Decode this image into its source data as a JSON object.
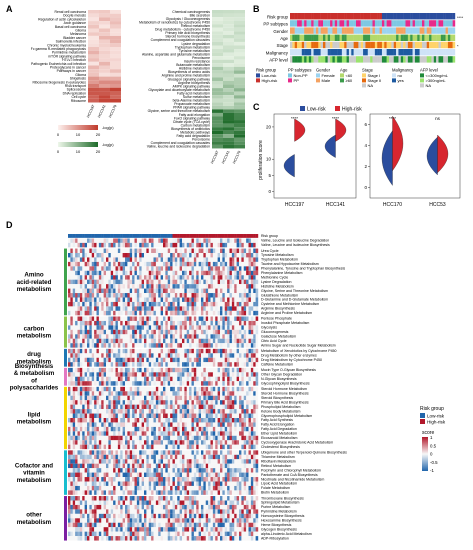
{
  "panel_labels": {
    "A": "A",
    "B": "B",
    "C": "C",
    "D": "D"
  },
  "panelA": {
    "left_rows": [
      "Renal cell carcinoma",
      "Oocyte meiosis",
      "Regulation of actin cytoskeleton",
      "Axon guidance",
      "Basal cell carcinoma",
      "Glioma",
      "Melanoma",
      "Bladder cancer",
      "Salmonella infection",
      "Chronic myeloid leukemia",
      "Fc gamma R-mediated phagocytosis",
      "Pyrimidine metabolism",
      "mTOR signaling pathway",
      "HTLV-I infection",
      "Pathogenic Escherichia coli infection",
      "Proteoglycans in cancer",
      "Pathways in cancer",
      "Glioma",
      "Shigellosis",
      "Ribosome biogenesis in eukaryotes",
      "RNA transport",
      "Spliceosome",
      "DNA replication",
      "Cell cycle",
      "Ribosome"
    ],
    "right_rows": [
      "Chemical carcinogenesis",
      "Bile secretion",
      "Glycolysis / Gluconeogenesis",
      "Metabolism of xenobiotics by cytochrome P450",
      "Retinol metabolism",
      "Drug metabolism - cytochrome P450",
      "Primary bile acid biosynthesis",
      "Steroid hormone biosynthesis",
      "Complement and coagulation cascades",
      "Lysine degradation",
      "Tryptophan metabolism",
      "Tyrosine metabolism",
      "Alanine, aspartate and glutamate metabolism",
      "Peroxisome",
      "Insulin resistance",
      "Butanoate metabolism",
      "Histidine metabolism",
      "Biosynthesis of amino acids",
      "Arginine and proline metabolism",
      "Glucagon signaling pathway",
      "Arginine biosynthesis",
      "AMPK signaling pathway",
      "Glyoxylate and dicarboxylate metabolism",
      "Fatty acid metabolism",
      "Sulfur metabolism",
      "beta-Alanine metabolism",
      "Propanoate metabolism",
      "PPAR signaling pathway",
      "Glycine, serine and threonine metabolism",
      "Fatty acid elongation",
      "FoxO signaling pathway",
      "Citrate cycle (TCA cycle)",
      "Carbon metabolism",
      "Biosynthesis of antibiotics",
      "Metabolic pathways",
      "Fatty acid degradation",
      "Peroxisome",
      "Complement and coagulation cascades",
      "Valine, leucine and isoleucine degradation"
    ],
    "columns": [
      "HCC197",
      "HCC141",
      "HCC170"
    ],
    "legend_red": {
      "title": "-log(p)",
      "ticks": [
        "0",
        "10",
        "20"
      ]
    },
    "legend_green": {
      "title": "-log(p)",
      "ticks": [
        "0",
        "10",
        "20"
      ]
    },
    "colors": {
      "red": "#c0392b",
      "green": "#1e6b2a"
    }
  },
  "panelB": {
    "tracks": [
      "Risk group",
      "PP subtypes",
      "Gender",
      "Age",
      "Stage",
      "Malignancy",
      "AFP level"
    ],
    "sig_marks": [
      "****",
      "",
      "",
      "",
      "*",
      "",
      ""
    ],
    "legend": {
      "risk_group": {
        "title": "Risk group",
        "items": [
          "Low-risk",
          "High-risk"
        ]
      },
      "pp_subtypes": {
        "title": "PP subtypes",
        "items": [
          "Non-PP",
          "PP"
        ]
      },
      "gender": {
        "title": "Gender",
        "items": [
          "Female",
          "Male"
        ]
      },
      "age": {
        "title": "Age",
        "items": [
          "<60",
          "≥60"
        ]
      },
      "stage": {
        "title": "Stage",
        "items": [
          "Stage I",
          "Stage II",
          "NA"
        ]
      },
      "malignancy": {
        "title": "Malignancy",
        "items": [
          "no",
          "yes"
        ]
      },
      "afp": {
        "title": "AFP level",
        "items": [
          "<=300ng/mL",
          ">300ng/mL",
          "NA"
        ]
      }
    }
  },
  "panelC": {
    "legend": [
      "Low-risk",
      "High-risk"
    ],
    "ylabel": "proliferation score",
    "left": {
      "groups": [
        "HCC197",
        "HCC141"
      ],
      "sig": [
        "****",
        "****"
      ],
      "yticks": [
        "0",
        "5",
        "10",
        "20"
      ]
    },
    "right": {
      "groups": [
        "HCC170",
        "HCC53"
      ],
      "sig": [
        "****",
        "ns"
      ],
      "yticks": [
        "0",
        "2",
        "4",
        "6"
      ]
    },
    "colors": {
      "low": "#2b4d9e",
      "high": "#d7262f"
    }
  },
  "panelD": {
    "top_rows": [
      "Risk group",
      "Valine, Leucine and Isoleucine Degradation",
      "Valine, Leucine and Isoleucine Biosynthesis"
    ],
    "groups": [
      {
        "title": "Amino acid-related metabolism",
        "color": "#3fa34d",
        "rows": [
          "Urea Cycle",
          "Tyrosine Metabolism",
          "Tryptophan Metabolism",
          "Taurine and Hypotaurine Metabolism",
          "Phenylalanine, Tyrosine and Tryptophan Biosynthesis",
          "Phenylalanine Metabolism",
          "Methionine Cycle",
          "Lysine Degradation",
          "Histidine Metabolism",
          "Glycine, Serine and Threonine Metabolism",
          "Glutathione Metabolism",
          "D-Glutamine and D-Glutamate Metabolism",
          "Cysteine and Methionine Metabolism",
          "Arginine Biosynthesis",
          "Arginine and Proline Metabolism"
        ]
      },
      {
        "title": "carbon metabolism",
        "color": "#8bc34a",
        "rows": [
          "Pentose Phosphate",
          "Inositol Phosphate Metabolism",
          "Glycolysis",
          "Gluconeogenesis",
          "Galactose Metabolism",
          "Citric Acid Cycle",
          "Amino Sugar and Nucleotide Sugar Metabolism"
        ]
      },
      {
        "title": "drug metabolism",
        "color": "#1f77b4",
        "rows": [
          "Metabolism of Xenobiotics by Cytochrome P450",
          "Drug Metabolism by other enzymes",
          "Drug Metabolism by Cytochrome P450",
          "Caffeine Metabolism"
        ]
      },
      {
        "title": "Biosynthesis & metabolism of polysaccharides",
        "color": "#e377c2",
        "rows": [
          "Mucin Type O-Glycan Biosynthesis",
          "Other Glycan Degradation",
          "N-Glycan Biosynthesis",
          "Glycosphingolipid Biosynthesis"
        ]
      },
      {
        "title": "lipid metabolism",
        "color": "#f2d500",
        "rows": [
          "Steroid Hormone Metabolism",
          "Steroid Hormone Biosynthesis",
          "Steroid Biosynthesis",
          "Primary Bile Acid Biosynthesis",
          "Phospholipid Metabolism",
          "Ketone Body Metabolism",
          "Glycerophospholipid Metabolism",
          "Fatty Acid Synthesis",
          "Fatty Acid Elongation",
          "Fatty Acid Degradation",
          "Ether Lipid Metabolism",
          "Eicosanoid Metabolism",
          "Cyclooxygenase Arachidonic Acid Metabolism",
          "Cholesterol Biosynthesis"
        ]
      },
      {
        "title": "Cofactor and vitamin metabolism",
        "color": "#17becf",
        "rows": [
          "Ubiquinone and other Terpenoid-Quinone Biosynthesis",
          "Thiamine Metabolism",
          "Riboflavin Metabolism",
          "Retinol Metabolism",
          "Porphyrin and Chlorophyll Metabolism",
          "Pantothenate and CoA Biosynthesis",
          "Nicotinate and Nicotinamide Metabolism",
          "Lipoic Acid Metabolism",
          "Folate Metabolism",
          "Biotin Metabolism"
        ]
      },
      {
        "title": "other metabolism",
        "color": "#7b1fa2",
        "rows": [
          "Thromboxane Biosynthesis",
          "Sphingolipid Metabolism",
          "Purine Metabolism",
          "Pyrimidine Metabolism",
          "Homocysteine Biosynthesis",
          "Hexosamine Biosynthesis",
          "Heme Biosynthesis",
          "Glycogen Biosynthesis",
          "alpha-Linolenic Acid Metabolism",
          "ADP-Ribosylation"
        ]
      }
    ],
    "legend_risk": {
      "title": "Risk group",
      "items": [
        "Low-risk",
        "High-risk"
      ]
    },
    "legend_score": {
      "title": "score",
      "ticks": [
        "1",
        "0.5",
        "0",
        "-0.5",
        "-1"
      ]
    },
    "colors": {
      "high": "#b2182b",
      "low": "#2166ac",
      "mid": "#f7f7f7"
    }
  }
}
